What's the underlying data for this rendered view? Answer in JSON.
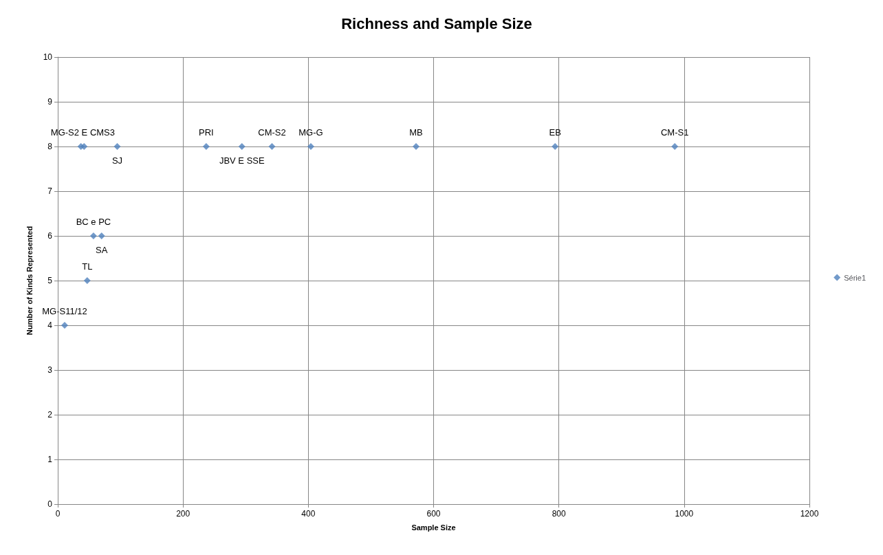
{
  "chart_data": {
    "type": "scatter",
    "title": "Richness and Sample Size",
    "xlabel": "Sample Size",
    "ylabel": "Number of Kinds Represented",
    "series": [
      {
        "name": "Série1",
        "color": "#4f81bd",
        "x": [
          11,
          47,
          57,
          70,
          37,
          42,
          95,
          237,
          294,
          342,
          404,
          572,
          794,
          985
        ],
        "values": [
          4,
          5,
          6,
          6,
          8,
          8,
          8,
          8,
          8,
          8,
          8,
          8,
          8,
          8
        ]
      }
    ],
    "xlim": [
      0,
      1200
    ],
    "xticks": [
      0,
      200,
      400,
      600,
      800,
      1000,
      1200
    ],
    "ylim": [
      0,
      10
    ],
    "yticks": [
      0,
      1,
      2,
      3,
      4,
      5,
      6,
      7,
      8,
      9,
      10
    ],
    "grid": true,
    "legend": "right",
    "marker": "diamond",
    "annotations": [
      {
        "text": "MG-S11/12",
        "x": 11,
        "y": 4
      },
      {
        "text": "TL",
        "x": 47,
        "y": 5
      },
      {
        "text": "BC e PC",
        "x": 57,
        "y": 6
      },
      {
        "text": "SA",
        "x": 70,
        "y": 6
      },
      {
        "text": "MG-S2 E CMS3",
        "x": 40,
        "y": 8
      },
      {
        "text": "SJ",
        "x": 95,
        "y": 8
      },
      {
        "text": "PRI",
        "x": 237,
        "y": 8
      },
      {
        "text": "JBV E SSE",
        "x": 294,
        "y": 8
      },
      {
        "text": "CM-S2",
        "x": 342,
        "y": 8
      },
      {
        "text": "MG-G",
        "x": 404,
        "y": 8
      },
      {
        "text": "MB",
        "x": 572,
        "y": 8
      },
      {
        "text": "EB",
        "x": 794,
        "y": 8
      },
      {
        "text": "CM-S1",
        "x": 985,
        "y": 8
      }
    ]
  }
}
